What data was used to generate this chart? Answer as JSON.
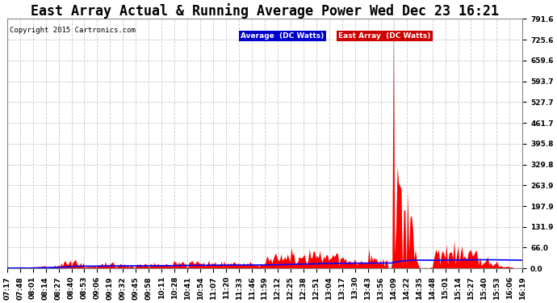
{
  "title": "East Array Actual & Running Average Power Wed Dec 23 16:21",
  "copyright": "Copyright 2015 Cartronics.com",
  "ylim": [
    0,
    791.6
  ],
  "yticks": [
    0.0,
    66.0,
    131.9,
    197.9,
    263.9,
    329.8,
    395.8,
    461.7,
    527.7,
    593.7,
    659.6,
    725.6,
    791.6
  ],
  "background_color": "#ffffff",
  "plot_bg_color": "#ffffff",
  "grid_color": "#c8c8c8",
  "title_fontsize": 12,
  "tick_fontsize": 6.5,
  "x_tick_labels": [
    "07:17",
    "07:48",
    "08:01",
    "08:14",
    "08:27",
    "08:40",
    "08:53",
    "09:06",
    "09:19",
    "09:32",
    "09:45",
    "09:58",
    "10:11",
    "10:28",
    "10:41",
    "10:54",
    "11:07",
    "11:20",
    "11:33",
    "11:46",
    "11:59",
    "12:12",
    "12:25",
    "12:38",
    "12:51",
    "13:04",
    "13:17",
    "13:30",
    "13:43",
    "13:56",
    "14:09",
    "14:22",
    "14:35",
    "14:48",
    "15:01",
    "15:14",
    "15:27",
    "15:40",
    "15:53",
    "16:06",
    "16:19"
  ],
  "legend_labels": [
    "Average  (DC Watts)",
    "East Array  (DC Watts)"
  ],
  "legend_colors_bg": [
    "#0000cc",
    "#cc0000"
  ],
  "legend_text_color": "#ffffff"
}
